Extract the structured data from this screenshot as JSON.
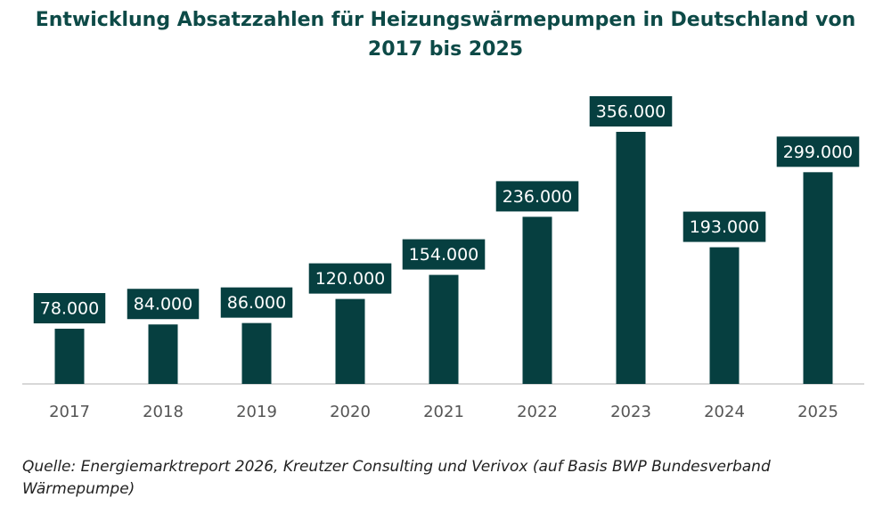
{
  "chart_data": {
    "type": "bar",
    "title": "Entwicklung Absatzzahlen für Heizungswärmepumpen in Deutschland von 2017 bis 2025",
    "categories": [
      "2017",
      "2018",
      "2019",
      "2020",
      "2021",
      "2022",
      "2023",
      "2024",
      "2025"
    ],
    "values": [
      78000,
      84000,
      86000,
      120000,
      154000,
      236000,
      356000,
      193000,
      299000
    ],
    "value_labels": [
      "78.000",
      "84.000",
      "86.000",
      "120.000",
      "154.000",
      "236.000",
      "356.000",
      "193.000",
      "299.000"
    ],
    "color": "#063f40",
    "source": "Quelle: Energiemarktreport 2026, Kreutzer Consulting und Verivox (auf Basis BWP Bundesverband Wärmepumpe)"
  }
}
